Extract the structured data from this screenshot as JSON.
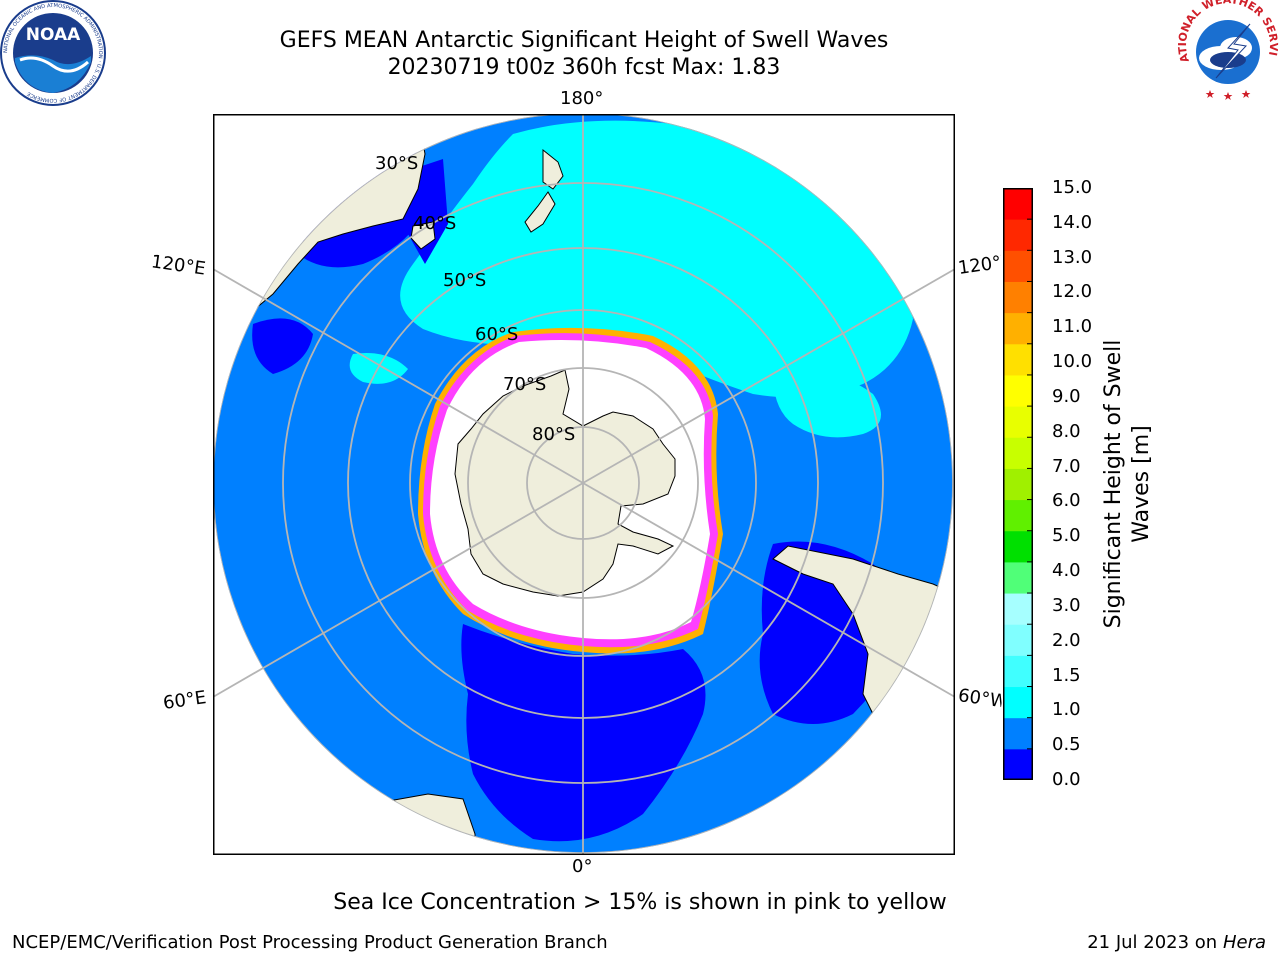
{
  "title": {
    "line1": "GEFS MEAN Antarctic Significant Height of Swell Waves",
    "line2": "20230719 t00z 360h fcst   Max: 1.83"
  },
  "logos": {
    "left": {
      "text": "NOAA",
      "ring_text": "NATIONAL OCEANIC AND ATMOSPHERIC ADMINISTRATION · U.S. DEPARTMENT OF COMMERCE"
    },
    "right": {
      "ring_text": "NATIONAL WEATHER SERVICE"
    }
  },
  "map": {
    "lon_labels": {
      "top": "180°",
      "bottom": "0°",
      "upper_left": "120°E",
      "upper_right": "120°W",
      "lower_left": "60°E",
      "lower_right": "60°W"
    },
    "lat_labels": [
      "30°S",
      "40°S",
      "50°S",
      "60°S",
      "70°S",
      "80°S"
    ],
    "colors": {
      "ocean_low": "#0000ff",
      "ocean_mid": "#0080ff",
      "ocean_high": "#00ffff",
      "land": "#efeedc",
      "ice": "#ffffff",
      "ice_edge_pink": "#ff40ff",
      "ice_edge_orange": "#ffb000"
    }
  },
  "colorbar": {
    "ticks": [
      "15.0",
      "14.0",
      "13.0",
      "12.0",
      "11.0",
      "10.0",
      "9.0",
      "8.0",
      "7.0",
      "6.0",
      "5.0",
      "4.0",
      "3.0",
      "2.0",
      "1.5",
      "1.0",
      "0.5",
      "0.0"
    ],
    "colors_bottom_to_top": [
      "#0000ff",
      "#0080ff",
      "#00ffff",
      "#40ffff",
      "#80ffff",
      "#a6ffff",
      "#50ff78",
      "#00e000",
      "#60f000",
      "#a0f000",
      "#c8ff00",
      "#e8ff00",
      "#ffff00",
      "#ffe000",
      "#ffb000",
      "#ff8000",
      "#ff5000",
      "#ff2800",
      "#ff0000"
    ],
    "label_line1": "Significant Height of Swell",
    "label_line2": "Waves [m]"
  },
  "notes": {
    "ice": "Sea Ice Concentration > 15% is shown in pink to yellow",
    "footer_left": "NCEP/EMC/Verification Post Processing Product Generation Branch",
    "footer_date": "21 Jul 2023 on ",
    "footer_host": "Hera"
  }
}
